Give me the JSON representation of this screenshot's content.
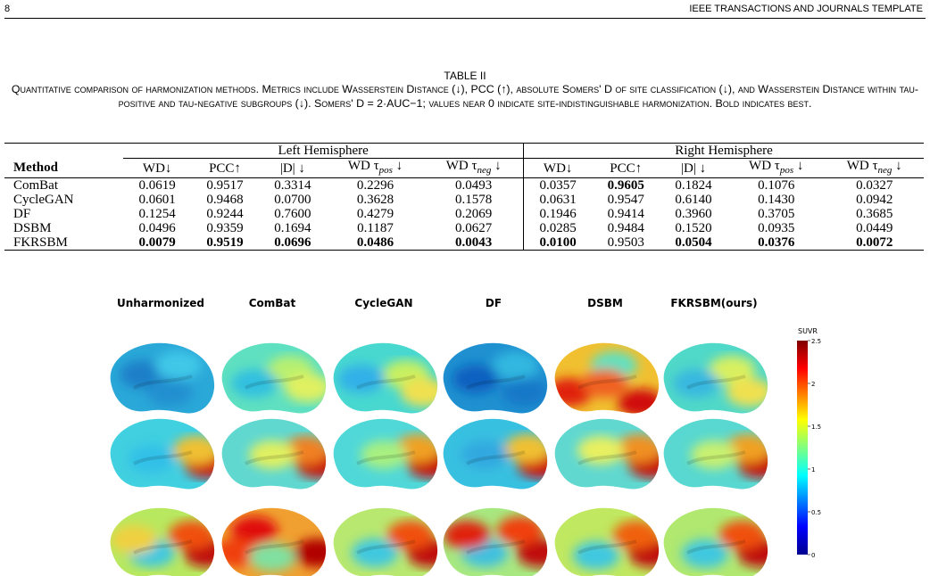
{
  "header": {
    "page": "8",
    "journal": "IEEE TRANSACTIONS AND JOURNALS TEMPLATE"
  },
  "table": {
    "label": "TABLE II",
    "caption": "Quantitative comparison of harmonization methods. Metrics include Wasserstein Distance (↓), PCC (↑), absolute Somers' D of site classification (↓), and Wasserstein Distance within tau-positive and tau-negative subgroups (↓). Somers' D = 2·AUC−1; values near 0 indicate site-indistinguishable harmonization. Bold indicates best.",
    "groups": [
      "Left Hemisphere",
      "Right Hemisphere"
    ],
    "columns": [
      {
        "text": "Method"
      },
      {
        "text": "WD↓"
      },
      {
        "text": "PCC↑"
      },
      {
        "text": "|D| ↓"
      },
      {
        "text": "WD τ",
        "sub": "pos",
        "after": " ↓"
      },
      {
        "text": "WD τ",
        "sub": "neg",
        "after": " ↓"
      },
      {
        "text": "WD↓"
      },
      {
        "text": "PCC↑"
      },
      {
        "text": "|D| ↓"
      },
      {
        "text": "WD τ",
        "sub": "pos",
        "after": " ↓"
      },
      {
        "text": "WD τ",
        "sub": "neg",
        "after": " ↓"
      }
    ],
    "rows": [
      [
        "ComBat",
        "0.0619",
        "0.9517",
        "0.3314",
        "0.2296",
        "0.0493",
        "0.0357",
        "0.9605",
        "0.1824",
        "0.1076",
        "0.0327"
      ],
      [
        "CycleGAN",
        "0.0601",
        "0.9468",
        "0.0700",
        "0.3628",
        "0.1578",
        "0.0631",
        "0.9547",
        "0.6140",
        "0.1430",
        "0.0942"
      ],
      [
        "DF",
        "0.1254",
        "0.9244",
        "0.7600",
        "0.4279",
        "0.2069",
        "0.1946",
        "0.9414",
        "0.3960",
        "0.3705",
        "0.3685"
      ],
      [
        "DSBM",
        "0.0496",
        "0.9359",
        "0.1694",
        "0.1187",
        "0.0627",
        "0.0285",
        "0.9484",
        "0.1520",
        "0.0935",
        "0.0449"
      ],
      [
        "FKRSBM",
        "0.0079",
        "0.9519",
        "0.0696",
        "0.0486",
        "0.0043",
        "0.0100",
        "0.9503",
        "0.0504",
        "0.0376",
        "0.0072"
      ]
    ],
    "bold": [
      [
        0,
        7
      ],
      [
        4,
        1
      ],
      [
        4,
        2
      ],
      [
        4,
        3
      ],
      [
        4,
        4
      ],
      [
        4,
        5
      ],
      [
        4,
        6
      ],
      [
        4,
        8
      ],
      [
        4,
        9
      ],
      [
        4,
        10
      ]
    ]
  },
  "figure": {
    "columns": [
      "Unharmonized",
      "ComBat",
      "CycleGAN",
      "DF",
      "DSBM",
      "FKRSBM(ours)"
    ],
    "colorbar": {
      "label": "SUVR",
      "ticks": [
        "2.5",
        "2",
        "1.5",
        "1",
        "0.5",
        "0"
      ]
    }
  }
}
